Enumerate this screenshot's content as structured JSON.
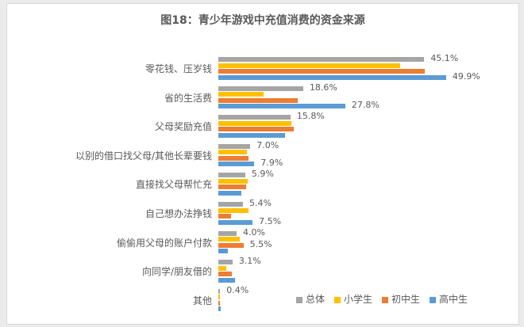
{
  "chart_data": {
    "type": "bar",
    "orientation": "horizontal",
    "title": "图18：青少年游戏中充值消费的资金来源",
    "categories": [
      "零花钱、压岁钱",
      "省的生活费",
      "父母奖励充值",
      "以别的借口找父母/其他长辈要钱",
      "直接找父母帮忙充",
      "自己想办法挣钱",
      "偷偷用父母的账户付款",
      "向同学/朋友借的",
      "其他"
    ],
    "series": [
      {
        "name": "总体",
        "color": "#a5a5a5",
        "values": [
          45.1,
          18.6,
          15.8,
          7.0,
          5.9,
          5.4,
          4.0,
          3.1,
          0.4
        ]
      },
      {
        "name": "小学生",
        "color": "#ffc000",
        "values": [
          39.8,
          9.9,
          16.0,
          6.3,
          6.4,
          6.6,
          4.7,
          1.7,
          0.3
        ]
      },
      {
        "name": "初中生",
        "color": "#ed7d31",
        "values": [
          45.2,
          17.4,
          16.5,
          6.6,
          6.1,
          2.8,
          5.5,
          3.0,
          0.4
        ]
      },
      {
        "name": "高中生",
        "color": "#5b9bd5",
        "values": [
          49.9,
          27.8,
          14.6,
          7.9,
          5.0,
          7.5,
          2.1,
          3.7,
          0.5
        ]
      }
    ],
    "labels": [
      {
        "cat": 0,
        "series": 0,
        "text": "45.1%"
      },
      {
        "cat": 0,
        "series": 3,
        "text": "49.9%"
      },
      {
        "cat": 1,
        "series": 0,
        "text": "18.6%"
      },
      {
        "cat": 1,
        "series": 3,
        "text": "27.8%"
      },
      {
        "cat": 2,
        "series": 0,
        "text": "15.8%"
      },
      {
        "cat": 3,
        "series": 0,
        "text": "7.0%"
      },
      {
        "cat": 3,
        "series": 3,
        "text": "7.9%"
      },
      {
        "cat": 4,
        "series": 0,
        "text": "5.9%"
      },
      {
        "cat": 5,
        "series": 0,
        "text": "5.4%"
      },
      {
        "cat": 5,
        "series": 3,
        "text": "7.5%"
      },
      {
        "cat": 6,
        "series": 0,
        "text": "4.0%"
      },
      {
        "cat": 6,
        "series": 2,
        "text": "5.5%"
      },
      {
        "cat": 7,
        "series": 0,
        "text": "3.1%"
      },
      {
        "cat": 8,
        "series": 0,
        "text": "0.4%"
      }
    ],
    "xlabel": "",
    "ylabel": "",
    "xlim": [
      0,
      60
    ],
    "grid": false,
    "legend_position": "bottom-right"
  },
  "legend": [
    "总体",
    "小学生",
    "初中生",
    "高中生"
  ]
}
